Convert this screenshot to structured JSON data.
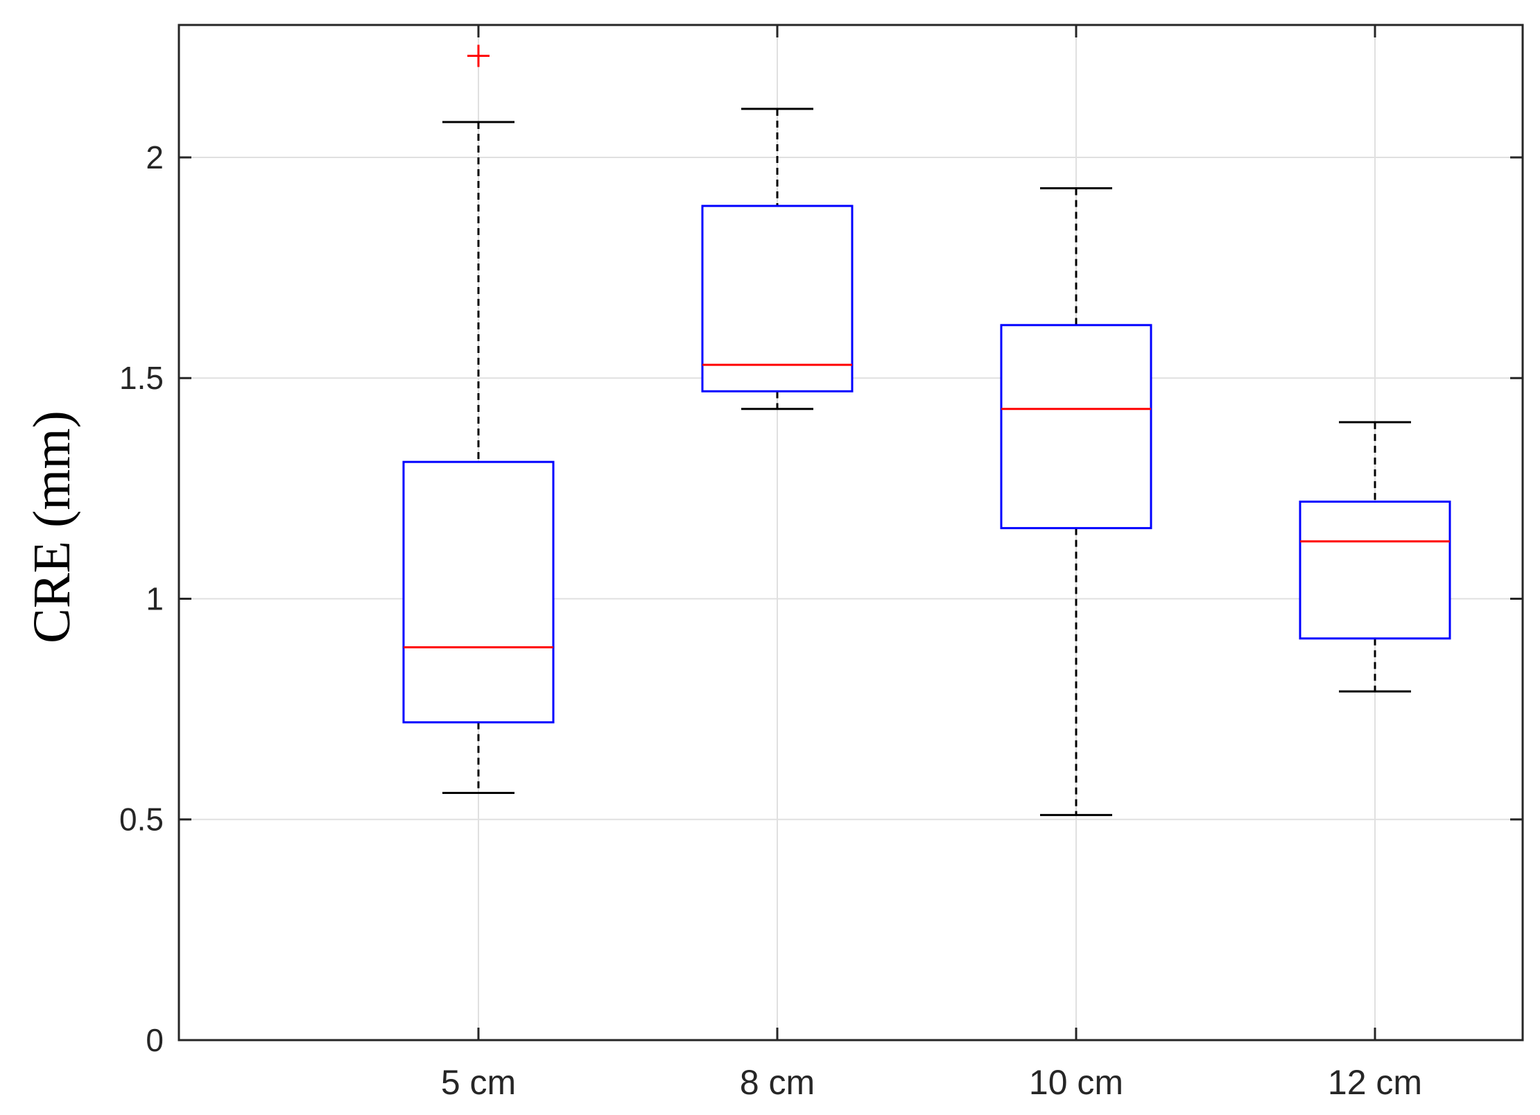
{
  "chart_data": {
    "type": "box",
    "ylabel": "CRE (mm)",
    "xlabel": "",
    "categories": [
      "5 cm",
      "8 cm",
      "10 cm",
      "12 cm"
    ],
    "ylim": [
      0,
      2.3
    ],
    "yticks": [
      0,
      0.5,
      1,
      1.5,
      2
    ],
    "ytick_labels": [
      "0",
      "0.5",
      "1",
      "1.5",
      "2"
    ],
    "grid": true,
    "boxes": [
      {
        "category": "5 cm",
        "whisker_low": 0.56,
        "q1": 0.72,
        "median": 0.89,
        "q3": 1.31,
        "whisker_high": 2.08,
        "outliers": [
          2.23
        ]
      },
      {
        "category": "8 cm",
        "whisker_low": 1.43,
        "q1": 1.47,
        "median": 1.53,
        "q3": 1.89,
        "whisker_high": 2.11,
        "outliers": []
      },
      {
        "category": "10 cm",
        "whisker_low": 0.51,
        "q1": 1.16,
        "median": 1.43,
        "q3": 1.62,
        "whisker_high": 1.93,
        "outliers": []
      },
      {
        "category": "12 cm",
        "whisker_low": 0.79,
        "q1": 0.91,
        "median": 1.13,
        "q3": 1.22,
        "whisker_high": 1.4,
        "outliers": []
      }
    ],
    "colors": {
      "box": "#0000ff",
      "median": "#ff0000",
      "whisker": "#000000",
      "outlier": "#ff0000",
      "grid": "#e0e0e0",
      "axis": "#262626"
    }
  }
}
